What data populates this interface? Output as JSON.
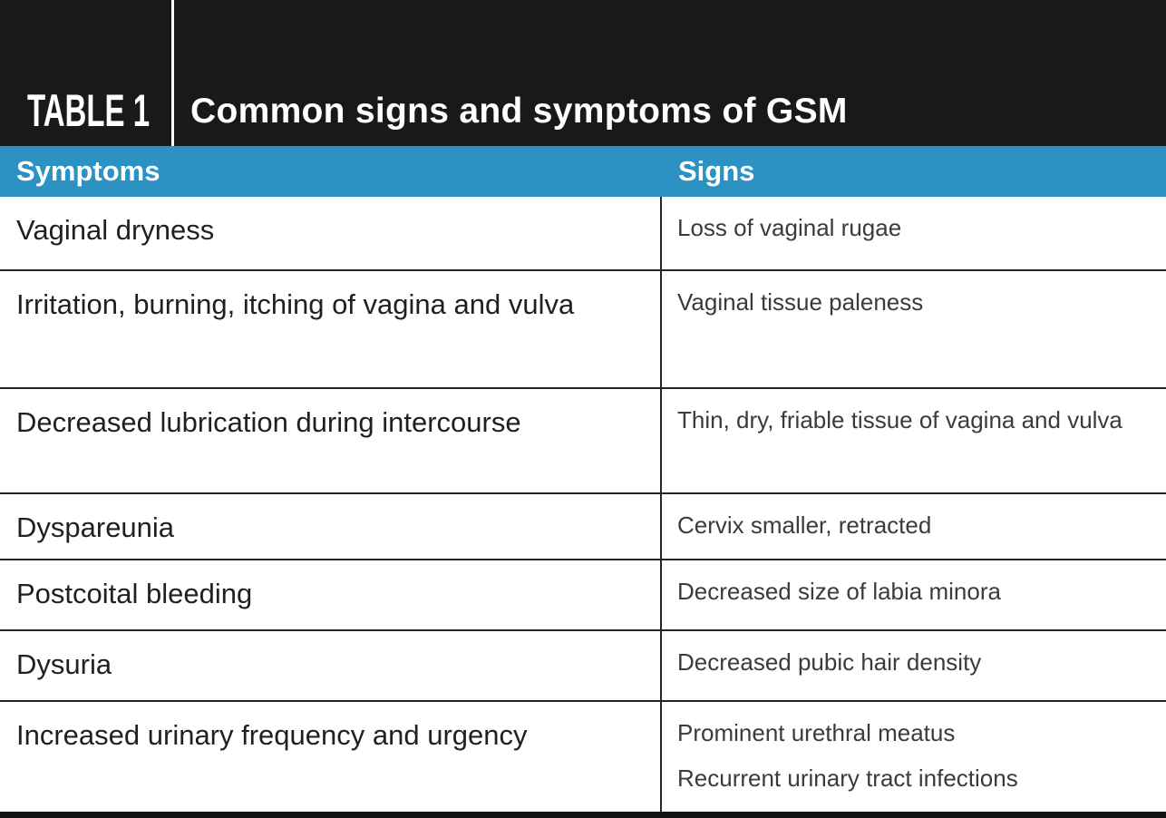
{
  "header": {
    "table_label": "TABLE 1",
    "title": "Common signs and symptoms of GSM"
  },
  "columns": {
    "symptoms": "Symptoms",
    "signs": "Signs"
  },
  "rows": [
    {
      "symptom": "Vaginal dryness",
      "signs": [
        "Loss of vaginal rugae"
      ]
    },
    {
      "symptom": "Irritation, burning, itching of vagina and vulva",
      "signs": [
        "Vaginal tissue paleness"
      ]
    },
    {
      "symptom": "Decreased lubrication during intercourse",
      "signs": [
        "Thin, dry, friable tissue of vagina and vulva"
      ]
    },
    {
      "symptom": "Dyspareunia",
      "signs": [
        "Cervix smaller, retracted"
      ]
    },
    {
      "symptom": "Postcoital bleeding",
      "signs": [
        "Decreased size of labia minora"
      ]
    },
    {
      "symptom": "Dysuria",
      "signs": [
        "Decreased pubic hair density"
      ]
    },
    {
      "symptom": "Increased urinary frequency and urgency",
      "signs": [
        "Prominent urethral meatus",
        "Recurrent urinary tract infections"
      ]
    }
  ],
  "colors": {
    "masthead_bg": "#1b181c",
    "accent_blue": "#2b92c3",
    "divider": "#272325",
    "symptom_text": "#231f20",
    "sign_text": "#3b3b3b"
  }
}
